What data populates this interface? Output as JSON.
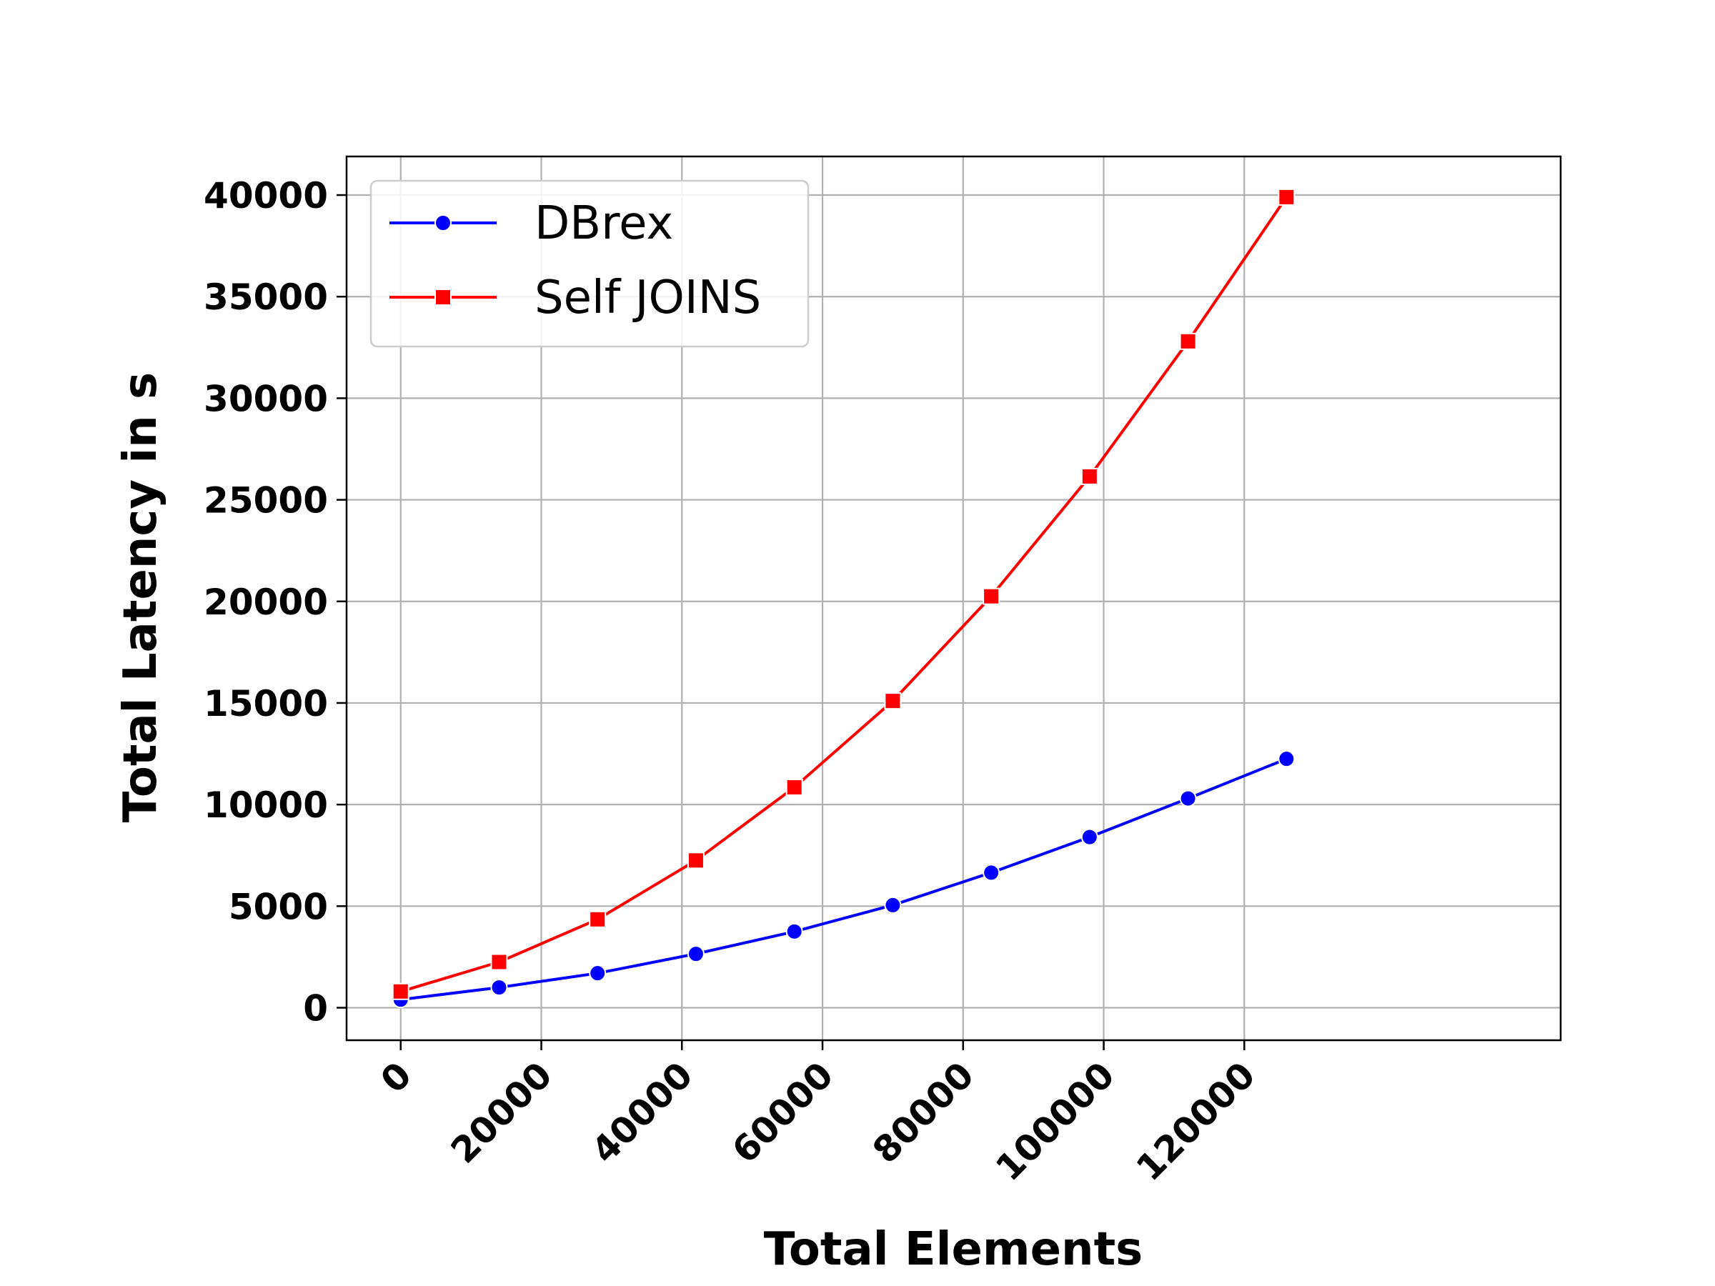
{
  "chart_data": {
    "type": "line",
    "xlabel": "Total Elements",
    "ylabel": "Total Latency in s",
    "xlim": [
      -7700,
      165000
    ],
    "ylim": [
      -1600,
      41900
    ],
    "xticks": [
      0,
      20000,
      40000,
      60000,
      80000,
      100000,
      120000
    ],
    "xtick_labels": [
      "0",
      "20000",
      "40000",
      "60000",
      "80000",
      "100000",
      "120000"
    ],
    "yticks": [
      0,
      5000,
      10000,
      15000,
      20000,
      25000,
      30000,
      35000,
      40000
    ],
    "ytick_labels": [
      "0",
      "5000",
      "10000",
      "15000",
      "20000",
      "25000",
      "30000",
      "35000",
      "40000"
    ],
    "grid": true,
    "legend_position": "top-left",
    "x": [
      0,
      14000,
      28000,
      42000,
      56000,
      70000,
      84000,
      98000,
      112000,
      126000
    ],
    "series": [
      {
        "name": "DBrex",
        "color": "#0000ff",
        "marker": "circle",
        "values": [
          400,
          1000,
          1700,
          2650,
          3750,
          5050,
          6650,
          8400,
          10300,
          12250
        ]
      },
      {
        "name": "Self JOINS",
        "color": "#ff0000",
        "marker": "square",
        "values": [
          800,
          2250,
          4350,
          7250,
          10850,
          15100,
          20250,
          26150,
          32800,
          39900
        ]
      }
    ]
  }
}
